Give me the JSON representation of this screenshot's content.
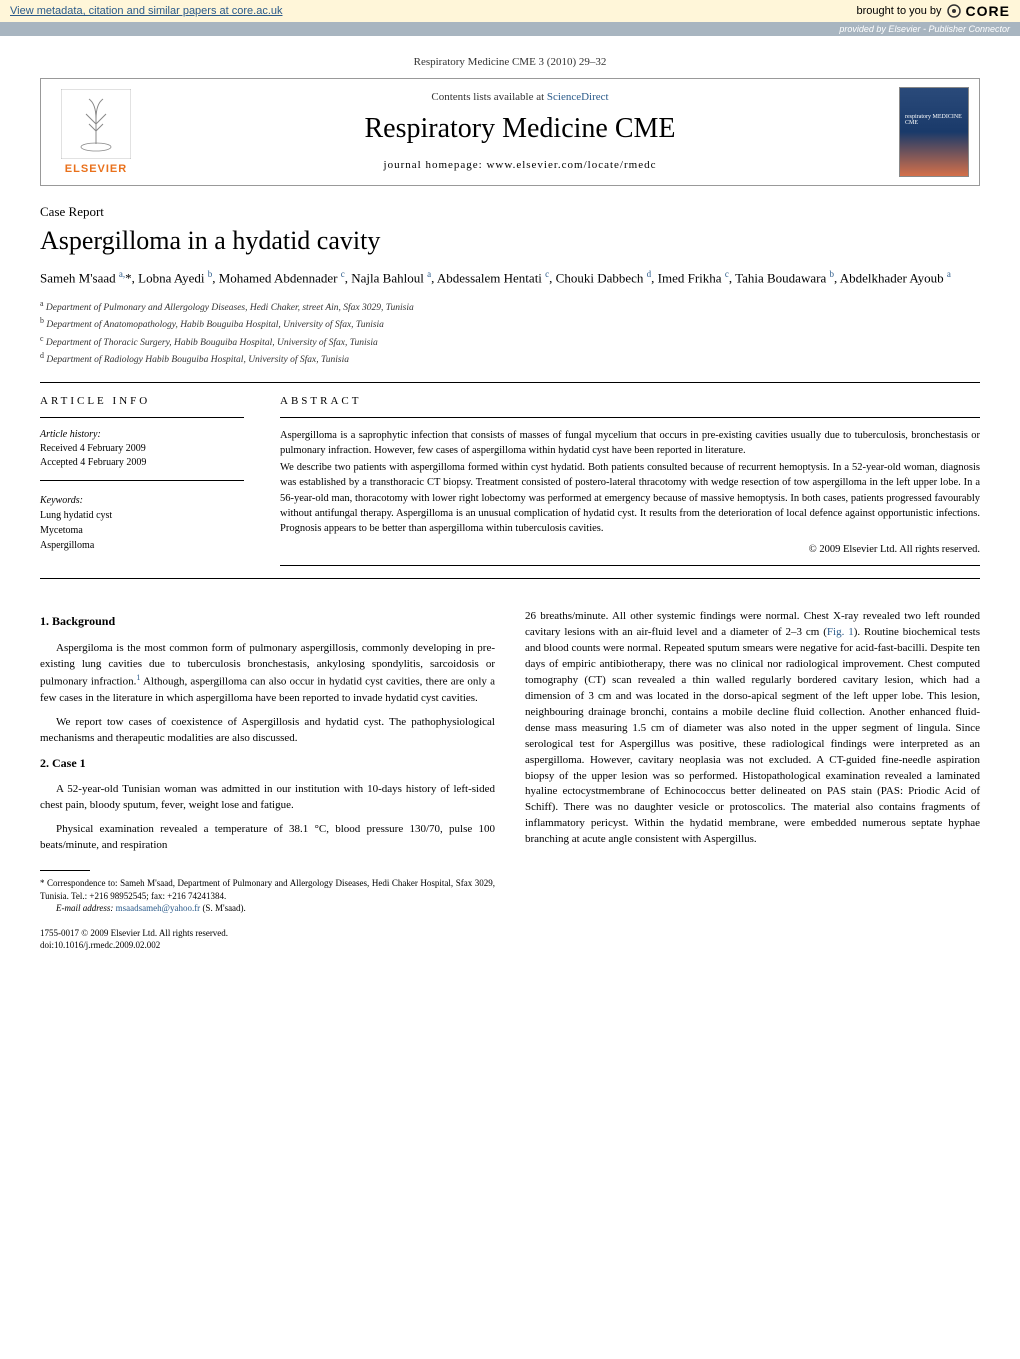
{
  "core_bar": {
    "left_text": "View metadata, citation and similar papers at core.ac.uk",
    "right_text": "brought to you by",
    "logo": "CORE"
  },
  "provided_bar": "provided by Elsevier - Publisher Connector",
  "citation": "Respiratory Medicine CME 3 (2010) 29–32",
  "header": {
    "contents_text": "Contents lists available at ",
    "contents_link": "ScienceDirect",
    "journal_title": "Respiratory Medicine CME",
    "homepage_text": "journal homepage: www.elsevier.com/locate/rmedc",
    "elsevier_label": "ELSEVIER",
    "cover_caption": "respiratory MEDICINE CME"
  },
  "article": {
    "case_report": "Case Report",
    "title": "Aspergilloma in a hydatid cavity",
    "authors_html": "Sameh M'saad <sup>a,</sup><span class='star'>*</span>, Lobna Ayedi <sup>b</sup>, Mohamed Abdennader <sup>c</sup>, Najla Bahloul <sup>a</sup>, Abdessalem Hentati <sup>c</sup>, Chouki Dabbech <sup>d</sup>, Imed Frikha <sup>c</sup>, Tahia Boudawara <sup>b</sup>, Abdelkhader Ayoub <sup>a</sup>",
    "affiliations": [
      "a Department of Pulmonary and Allergology Diseases, Hedi Chaker, street Ain, Sfax 3029, Tunisia",
      "b Department of Anatomopathology, Habib Bouguiba Hospital, University of Sfax, Tunisia",
      "c Department of Thoracic Surgery, Habib Bouguiba Hospital, University of Sfax, Tunisia",
      "d Department of Radiology Habib Bouguiba Hospital, University of Sfax, Tunisia"
    ]
  },
  "article_info": {
    "heading": "ARTICLE INFO",
    "history_label": "Article history:",
    "received": "Received 4 February 2009",
    "accepted": "Accepted 4 February 2009",
    "keywords_label": "Keywords:",
    "keywords": [
      "Lung hydatid cyst",
      "Mycetoma",
      "Aspergilloma"
    ]
  },
  "abstract": {
    "heading": "ABSTRACT",
    "p1": "Aspergilloma is a saprophytic infection that consists of masses of fungal mycelium that occurs in pre-existing cavities usually due to tuberculosis, bronchestasis or pulmonary infraction. However, few cases of aspergilloma within hydatid cyst have been reported in literature.",
    "p2": "We describe two patients with aspergilloma formed within cyst hydatid. Both patients consulted because of recurrent hemoptysis. In a 52-year-old woman, diagnosis was established by a transthoracic CT biopsy. Treatment consisted of postero-lateral thracotomy with wedge resection of tow aspergilloma in the left upper lobe. In a 56-year-old man, thoracotomy with lower right lobectomy was performed at emergency because of massive hemoptysis. In both cases, patients progressed favourably without antifungal therapy. Aspergilloma is an unusual complication of hydatid cyst. It results from the deterioration of local defence against opportunistic infections. Prognosis appears to be better than aspergilloma within tuberculosis cavities.",
    "copyright": "© 2009 Elsevier Ltd. All rights reserved."
  },
  "body": {
    "left": {
      "h1": "1. Background",
      "p1": "Aspergiloma is the most common form of pulmonary aspergillosis, commonly developing in pre-existing lung cavities due to tuberculosis bronchestasis, ankylosing spondylitis, sarcoidosis or pulmonary infraction.",
      "p1b": " Although, aspergilloma can also occur in hydatid cyst cavities, there are only a few cases in the literature in which aspergilloma have been reported to invade hydatid cyst cavities.",
      "p2": "We report tow cases of coexistence of Aspergillosis and hydatid cyst. The pathophysiological mechanisms and therapeutic modalities are also discussed.",
      "h2": "2. Case 1",
      "p3": "A 52-year-old Tunisian woman was admitted in our institution with 10-days history of left-sided chest pain, bloody sputum, fever, weight lose and fatigue.",
      "p4": "Physical examination revealed a temperature of 38.1 °C, blood pressure 130/70, pulse 100 beats/minute, and respiration"
    },
    "right": {
      "p1a": "26 breaths/minute. All other systemic findings were normal. Chest X-ray revealed two left rounded cavitary lesions with an air-fluid level and a diameter of 2–3 cm (",
      "fig": "Fig. 1",
      "p1b": "). Routine biochemical tests and blood counts were normal. Repeated sputum smears were negative for acid-fast-bacilli. Despite ten days of empiric antibiotherapy, there was no clinical nor radiological improvement. Chest computed tomography (CT) scan revealed a thin walled regularly bordered cavitary lesion, which had a dimension of 3 cm and was located in the dorso-apical segment of the left upper lobe. This lesion, neighbouring drainage bronchi, contains a mobile decline fluid collection. Another enhanced fluid-dense mass measuring 1.5 cm of diameter was also noted in the upper segment of lingula. Since serological test for Aspergillus was positive, these radiological findings were interpreted as an aspergilloma. However, cavitary neoplasia was not excluded. A CT-guided fine-needle aspiration biopsy of the upper lesion was so performed. Histopathological examination revealed a laminated hyaline ectocystmembrane of Echinococcus better delineated on PAS stain (PAS: Priodic Acid of Schiff). There was no daughter vesicle or protoscolics. The material also contains fragments of inflammatory pericyst. Within the hydatid membrane, were embedded numerous septate hyphae branching at acute angle consistent with Aspergillus."
    }
  },
  "footnotes": {
    "corr": "* Correspondence to: Sameh M'saad, Department of Pulmonary and Allergology Diseases, Hedi Chaker Hospital, Sfax 3029, Tunisia. Tel.: +216 98952545; fax: +216 74241384.",
    "email_label": "E-mail address: ",
    "email": "msaadsameh@yahoo.fr",
    "email_suffix": " (S. M'saad).",
    "issn": "1755-0017 © 2009 Elsevier Ltd. All rights reserved.",
    "doi": "doi:10.1016/j.rmedc.2009.02.002"
  },
  "colors": {
    "core_bg": "#fff6d9",
    "provided_bg": "#a8b5c0",
    "link": "#2a5a8a",
    "elsevier": "#e9711c"
  }
}
